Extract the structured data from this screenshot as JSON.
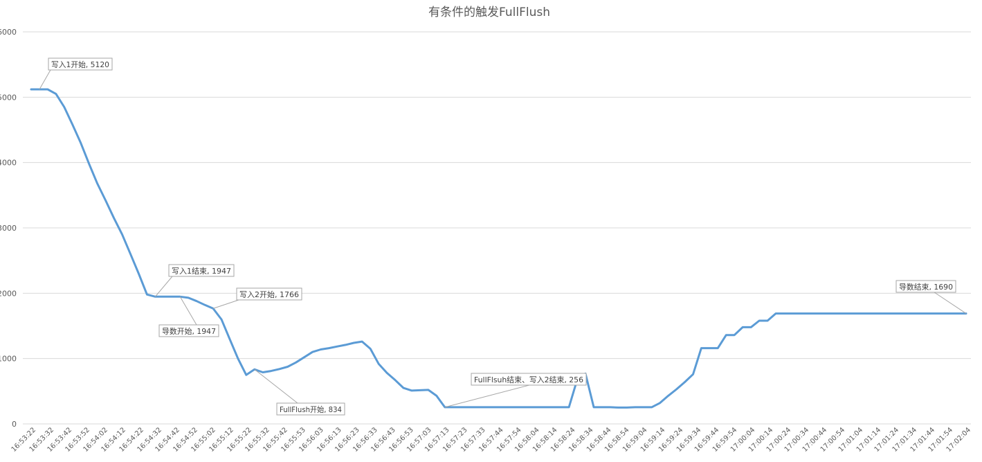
{
  "chart_data": {
    "type": "line",
    "title": "有条件的触发FullFlush",
    "xlabel": "",
    "ylabel": "",
    "ylim": [
      0,
      6000
    ],
    "yticks": [
      0,
      1000,
      2000,
      3000,
      4000,
      5000,
      6000
    ],
    "grid": true,
    "legend": "none",
    "x_tick_labels": [
      "16:53:22",
      "16:53:32",
      "16:53:42",
      "16:53:52",
      "16:54:02",
      "16:54:12",
      "16:54:22",
      "16:54:32",
      "16:54:42",
      "16:54:52",
      "16:55:02",
      "16:55:12",
      "16:55:22",
      "16:55:32",
      "16:55:42",
      "16:55:53",
      "16:56:03",
      "16:56:13",
      "16:56:23",
      "16:56:33",
      "16:56:43",
      "16:56:53",
      "16:57:03",
      "16:57:13",
      "16:57:23",
      "16:57:33",
      "16:57:44",
      "16:57:54",
      "16:58:04",
      "16:58:14",
      "16:58:24",
      "16:58:34",
      "16:58:44",
      "16:58:54",
      "16:59:04",
      "16:59:14",
      "16:59:24",
      "16:59:34",
      "16:59:44",
      "16:59:54",
      "17:00:04",
      "17:00:14",
      "17:00:24",
      "17:00:34",
      "17:00:44",
      "17:00:54",
      "17:01:04",
      "17:01:14",
      "17:01:24",
      "17:01:34",
      "17:01:44",
      "17:01:54",
      "17:02:04"
    ],
    "series": [
      {
        "color": "#5b9bd5",
        "values": [
          5120,
          5120,
          5120,
          5050,
          4850,
          4580,
          4300,
          3980,
          3680,
          3420,
          3150,
          2900,
          2600,
          2300,
          1980,
          1947,
          1947,
          1947,
          1947,
          1930,
          1880,
          1820,
          1766,
          1600,
          1300,
          1000,
          750,
          834,
          790,
          810,
          840,
          875,
          940,
          1020,
          1100,
          1140,
          1160,
          1185,
          1210,
          1240,
          1260,
          1150,
          920,
          780,
          670,
          550,
          510,
          515,
          520,
          430,
          256,
          256,
          256,
          256,
          256,
          256,
          256,
          256,
          256,
          256,
          256,
          256,
          256,
          256,
          256,
          256,
          680,
          770,
          256,
          256,
          256,
          250,
          250,
          256,
          256,
          256,
          320,
          430,
          530,
          640,
          760,
          1160,
          1160,
          1160,
          1360,
          1360,
          1480,
          1480,
          1580,
          1580,
          1690,
          1690,
          1690,
          1690,
          1690,
          1690,
          1690,
          1690,
          1690,
          1690,
          1690,
          1690,
          1690,
          1690,
          1690,
          1690,
          1690,
          1690,
          1690,
          1690,
          1690,
          1690,
          1690,
          1690
        ]
      }
    ],
    "annotations": [
      {
        "text": "写入1开始, 5120",
        "point_index": 1,
        "value": 5120
      },
      {
        "text": "写入1结束, 1947",
        "point_index": 15,
        "value": 1947
      },
      {
        "text": "导数开始, 1947",
        "point_index": 18,
        "value": 1947
      },
      {
        "text": "写入2开始, 1766",
        "point_index": 22,
        "value": 1766
      },
      {
        "text": "FullFlush开始, 834",
        "point_index": 27,
        "value": 834
      },
      {
        "text": "FullFlsuh结束、写入2结束, 256",
        "point_index": 50,
        "value": 256
      },
      {
        "text": "导数结束, 1690",
        "point_index": 113,
        "value": 1690
      }
    ]
  }
}
